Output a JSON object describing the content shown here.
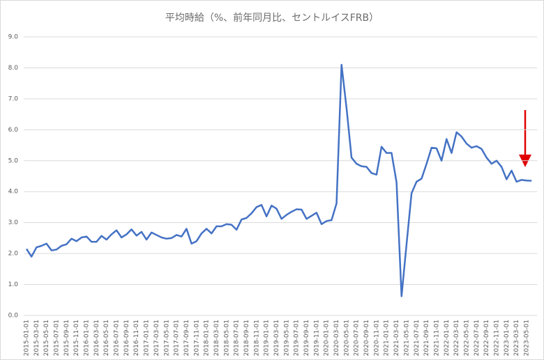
{
  "chart_data": {
    "type": "line",
    "title": "平均時給（%、前年同月比、セントルイスFRB）",
    "categories": [
      "2015-01-01",
      null,
      "2015-03-01",
      null,
      "2015-05-01",
      null,
      "2015-07-01",
      null,
      "2015-09-01",
      null,
      "2015-11-01",
      null,
      "2016-01-01",
      null,
      "2016-03-01",
      null,
      "2016-05-01",
      null,
      "2016-07-01",
      null,
      "2016-09-01",
      null,
      "2016-11-01",
      null,
      "2017-01-01",
      null,
      "2017-03-01",
      null,
      "2017-05-01",
      null,
      "2017-07-01",
      null,
      "2017-09-01",
      null,
      "2017-11-01",
      null,
      "2018-01-01",
      null,
      "2018-03-01",
      null,
      "2018-05-01",
      null,
      "2018-07-01",
      null,
      "2018-09-01",
      null,
      "2018-11-01",
      null,
      "2019-01-01",
      null,
      "2019-03-01",
      null,
      "2019-05-01",
      null,
      "2019-07-01",
      null,
      "2019-09-01",
      null,
      "2019-11-01",
      null,
      "2020-01-01",
      null,
      "2020-03-01",
      null,
      "2020-05-01",
      null,
      "2020-07-01",
      null,
      "2020-09-01",
      null,
      "2020-11-01",
      null,
      "2021-01-01",
      null,
      "2021-03-01",
      null,
      "2021-05-01",
      null,
      "2021-07-01",
      null,
      "2021-09-01",
      null,
      "2021-11-01",
      null,
      "2022-01-01",
      null,
      "2022-03-01",
      null,
      "2022-05-01",
      null,
      "2022-07-01",
      null,
      "2022-09-01",
      null,
      "2022-11-01",
      null,
      "2023-01-01",
      null,
      "2023-03-01",
      null,
      "2023-05-01",
      null
    ],
    "values": [
      2.15,
      1.9,
      2.2,
      2.25,
      2.32,
      2.1,
      2.13,
      2.25,
      2.3,
      2.48,
      2.4,
      2.52,
      2.55,
      2.38,
      2.38,
      2.57,
      2.45,
      2.62,
      2.75,
      2.52,
      2.62,
      2.78,
      2.58,
      2.7,
      2.45,
      2.68,
      2.6,
      2.52,
      2.48,
      2.5,
      2.6,
      2.55,
      2.8,
      2.32,
      2.4,
      2.65,
      2.8,
      2.65,
      2.88,
      2.88,
      2.95,
      2.93,
      2.77,
      3.1,
      3.15,
      3.3,
      3.5,
      3.57,
      3.2,
      3.55,
      3.45,
      3.12,
      3.25,
      3.35,
      3.43,
      3.42,
      3.12,
      3.22,
      3.32,
      2.95,
      3.05,
      3.08,
      3.62,
      8.1,
      6.7,
      5.1,
      4.9,
      4.82,
      4.8,
      4.6,
      4.55,
      5.45,
      5.25,
      5.25,
      4.3,
      0.62,
      2.3,
      3.95,
      4.32,
      4.42,
      4.9,
      5.42,
      5.4,
      5.0,
      5.7,
      5.25,
      5.92,
      5.78,
      5.55,
      5.42,
      5.47,
      5.38,
      5.1,
      4.9,
      5.0,
      4.8,
      4.4,
      4.68,
      4.32,
      4.38,
      4.36,
      4.35
    ],
    "color": "#4472c4",
    "ylim": [
      0,
      9
    ],
    "yticks": [
      {
        "value": 0,
        "label": "0.0"
      },
      {
        "value": 1,
        "label": "1.0"
      },
      {
        "value": 2,
        "label": "2.0"
      },
      {
        "value": 3,
        "label": "3.0"
      },
      {
        "value": 4,
        "label": "4.0"
      },
      {
        "value": 5,
        "label": "5.0"
      },
      {
        "value": 6,
        "label": "6.0"
      },
      {
        "value": 7,
        "label": "7.0"
      },
      {
        "value": 8,
        "label": "8.0"
      },
      {
        "value": 9,
        "label": "9.0"
      }
    ],
    "grid": true
  }
}
